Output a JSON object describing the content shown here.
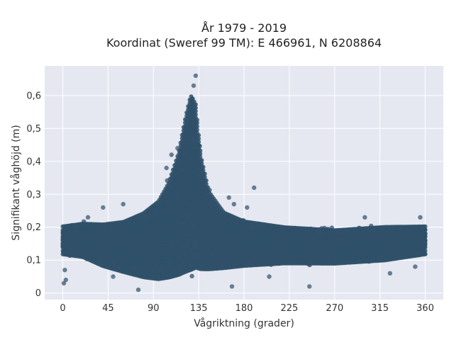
{
  "chart_data": {
    "type": "scatter",
    "title_line1": "År 1979 - 2019",
    "title_line2": "Koordinat (Sweref 99 TM): E 466961, N 6208864",
    "xlabel": "Vågriktning (grader)",
    "ylabel": "Signifikant våghöjd (m)",
    "xlim": [
      -18,
      378
    ],
    "ylim": [
      -0.02,
      0.69
    ],
    "x_ticks": [
      0,
      45,
      90,
      135,
      180,
      225,
      270,
      315,
      360
    ],
    "y_ticks": [
      {
        "value": 0,
        "label": "0"
      },
      {
        "value": 0.1,
        "label": "0,1"
      },
      {
        "value": 0.2,
        "label": "0,2"
      },
      {
        "value": 0.3,
        "label": "0,3"
      },
      {
        "value": 0.4,
        "label": "0,4"
      },
      {
        "value": 0.5,
        "label": "0,5"
      },
      {
        "value": 0.6,
        "label": "0,6"
      }
    ],
    "grid": true,
    "marker_color": "#2f5068",
    "plot_background": "#e5e8f1",
    "density_envelope": [
      {
        "x": 0,
        "lo": 0.11,
        "hi": 0.21
      },
      {
        "x": 20,
        "lo": 0.1,
        "hi": 0.22
      },
      {
        "x": 40,
        "lo": 0.07,
        "hi": 0.22
      },
      {
        "x": 60,
        "lo": 0.05,
        "hi": 0.23
      },
      {
        "x": 80,
        "lo": 0.03,
        "hi": 0.26
      },
      {
        "x": 95,
        "lo": 0.02,
        "hi": 0.3
      },
      {
        "x": 105,
        "lo": 0.02,
        "hi": 0.36
      },
      {
        "x": 115,
        "lo": 0.02,
        "hi": 0.46
      },
      {
        "x": 122,
        "lo": 0.02,
        "hi": 0.58
      },
      {
        "x": 127,
        "lo": 0.02,
        "hi": 0.65
      },
      {
        "x": 132,
        "lo": 0.03,
        "hi": 0.62
      },
      {
        "x": 137,
        "lo": 0.04,
        "hi": 0.45
      },
      {
        "x": 145,
        "lo": 0.05,
        "hi": 0.33
      },
      {
        "x": 160,
        "lo": 0.06,
        "hi": 0.26
      },
      {
        "x": 180,
        "lo": 0.07,
        "hi": 0.23
      },
      {
        "x": 220,
        "lo": 0.08,
        "hi": 0.21
      },
      {
        "x": 270,
        "lo": 0.08,
        "hi": 0.2
      },
      {
        "x": 320,
        "lo": 0.09,
        "hi": 0.21
      },
      {
        "x": 360,
        "lo": 0.11,
        "hi": 0.21
      }
    ],
    "outliers": [
      {
        "x": 1,
        "y": 0.03
      },
      {
        "x": 3,
        "y": 0.04
      },
      {
        "x": 2,
        "y": 0.07
      },
      {
        "x": 108,
        "y": 0.42
      },
      {
        "x": 114,
        "y": 0.44
      },
      {
        "x": 103,
        "y": 0.38
      },
      {
        "x": 132,
        "y": 0.66
      },
      {
        "x": 130,
        "y": 0.63
      },
      {
        "x": 190,
        "y": 0.32
      },
      {
        "x": 165,
        "y": 0.29
      },
      {
        "x": 170,
        "y": 0.27
      },
      {
        "x": 183,
        "y": 0.26
      },
      {
        "x": 40,
        "y": 0.26
      },
      {
        "x": 25,
        "y": 0.23
      },
      {
        "x": 60,
        "y": 0.27
      },
      {
        "x": 245,
        "y": 0.02
      },
      {
        "x": 325,
        "y": 0.06
      },
      {
        "x": 350,
        "y": 0.08
      },
      {
        "x": 355,
        "y": 0.23
      },
      {
        "x": 300,
        "y": 0.23
      },
      {
        "x": 205,
        "y": 0.05
      },
      {
        "x": 168,
        "y": 0.02
      },
      {
        "x": 75,
        "y": 0.01
      },
      {
        "x": 50,
        "y": 0.05
      }
    ]
  }
}
